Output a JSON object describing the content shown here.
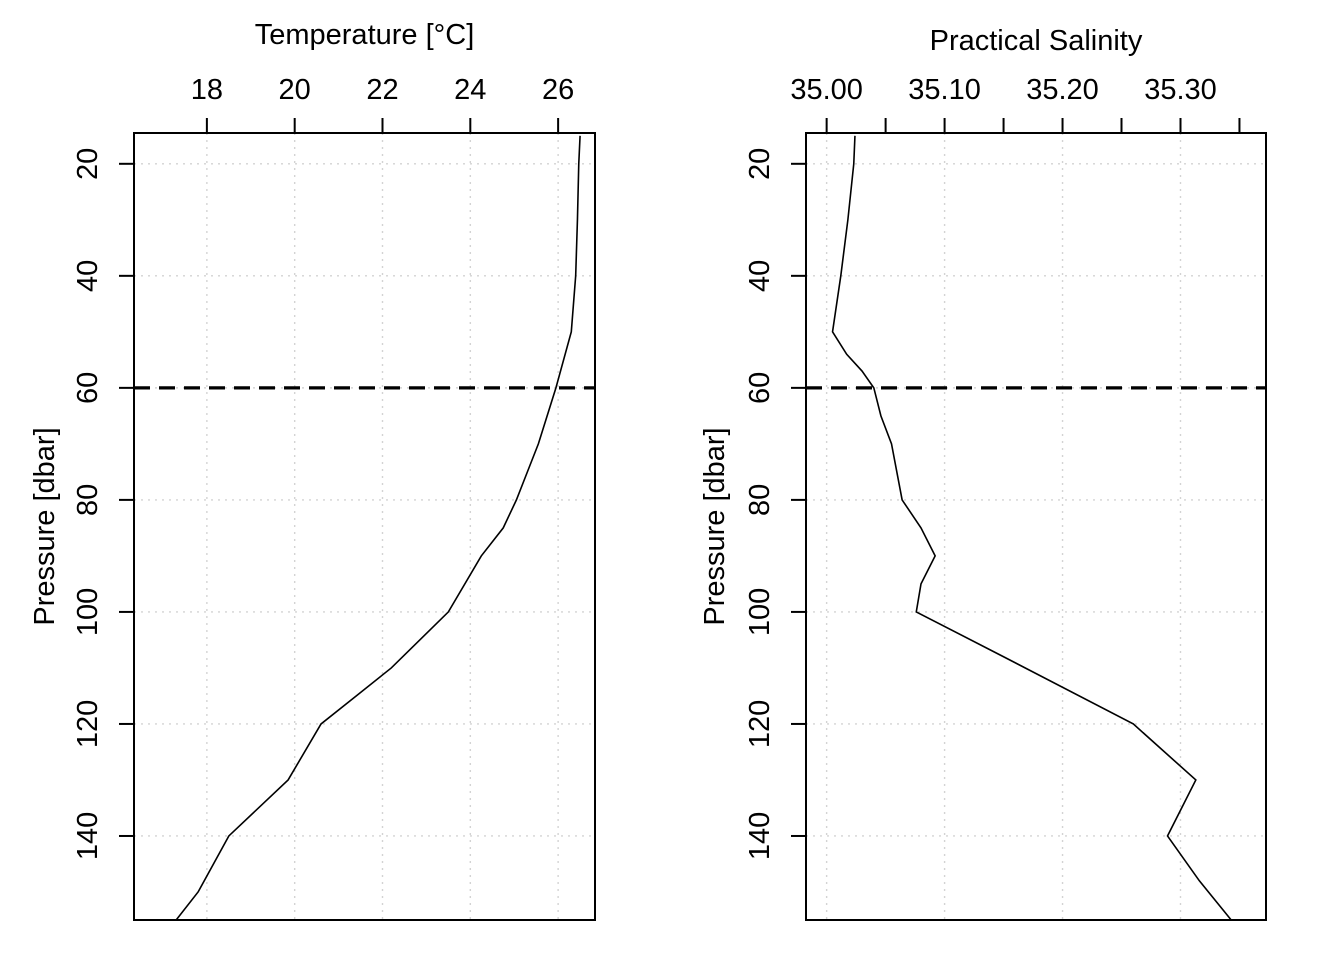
{
  "chart_data": [
    {
      "type": "line",
      "xlabel": "Temperature [°C]",
      "ylabel": "Pressure [dbar]",
      "xlim": [
        16.34,
        26.84
      ],
      "ylim": [
        155,
        14.5
      ],
      "x_ticks": [
        18,
        20,
        22,
        24,
        26
      ],
      "x_tick_labels": [
        "18",
        "20",
        "22",
        "24",
        "26"
      ],
      "y_ticks": [
        20,
        40,
        60,
        80,
        100,
        120,
        140
      ],
      "y_tick_labels": [
        "20",
        "40",
        "60",
        "80",
        "100",
        "120",
        "140"
      ],
      "grid": true,
      "reference_line": {
        "orientation": "horizontal",
        "value": 60,
        "style": "dashed"
      },
      "series": [
        {
          "name": "temperature",
          "x": [
            26.5,
            26.47,
            26.44,
            26.4,
            26.3,
            25.95,
            25.75,
            25.55,
            25.3,
            25.05,
            24.75,
            24.25,
            23.5,
            22.2,
            21.4,
            20.6,
            19.85,
            18.5,
            17.8,
            17.3
          ],
          "y": [
            15,
            20,
            30,
            40,
            50,
            60,
            65,
            70,
            75,
            80,
            85,
            90,
            100,
            110,
            115,
            120,
            130,
            140,
            150,
            155
          ]
        }
      ]
    },
    {
      "type": "line",
      "xlabel": "Practical Salinity",
      "ylabel": "Pressure [dbar]",
      "xlim": [
        34.9825,
        35.3725
      ],
      "ylim": [
        155,
        14.5
      ],
      "x_ticks": [
        35.0,
        35.05,
        35.1,
        35.15,
        35.2,
        35.25,
        35.3,
        35.35
      ],
      "x_tick_labels": [
        "35.00",
        "",
        "35.10",
        "",
        "35.20",
        "",
        "35.30",
        ""
      ],
      "y_ticks": [
        20,
        40,
        60,
        80,
        100,
        120,
        140
      ],
      "y_tick_labels": [
        "20",
        "40",
        "60",
        "80",
        "100",
        "120",
        "140"
      ],
      "grid": true,
      "reference_line": {
        "orientation": "horizontal",
        "value": 60,
        "style": "dashed"
      },
      "series": [
        {
          "name": "salinity",
          "x": [
            35.024,
            35.023,
            35.018,
            35.012,
            35.005,
            35.017,
            35.03,
            35.04,
            35.046,
            35.055,
            35.064,
            35.08,
            35.092,
            35.08,
            35.076,
            35.15,
            35.26,
            35.313,
            35.289,
            35.316,
            35.343
          ],
          "y": [
            15,
            20,
            30,
            40,
            50,
            54,
            57,
            60,
            65,
            70,
            80,
            85,
            90,
            95,
            100,
            108,
            120,
            130,
            140,
            148,
            155
          ]
        }
      ]
    }
  ]
}
